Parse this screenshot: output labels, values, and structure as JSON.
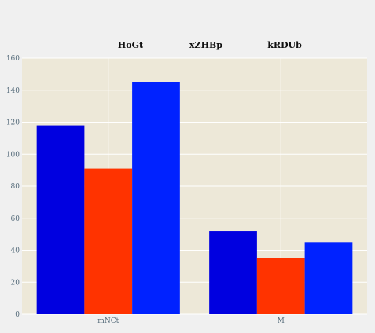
{
  "chart_data": {
    "type": "bar",
    "categories": [
      "mNCt",
      "M"
    ],
    "series": [
      {
        "name": "HoGt",
        "values": [
          118,
          52
        ],
        "color": "#0000e0"
      },
      {
        "name": "xZHBp",
        "values": [
          91,
          35
        ],
        "color": "#ff3300"
      },
      {
        "name": "kRDUb",
        "values": [
          145,
          45
        ],
        "color": "#0022ff"
      }
    ],
    "ylim": [
      0,
      160
    ],
    "yticks": [
      0,
      20,
      40,
      60,
      80,
      100,
      120,
      140,
      160
    ],
    "grid": true,
    "legend_position": "top",
    "plot_background": "#ede8d8"
  }
}
